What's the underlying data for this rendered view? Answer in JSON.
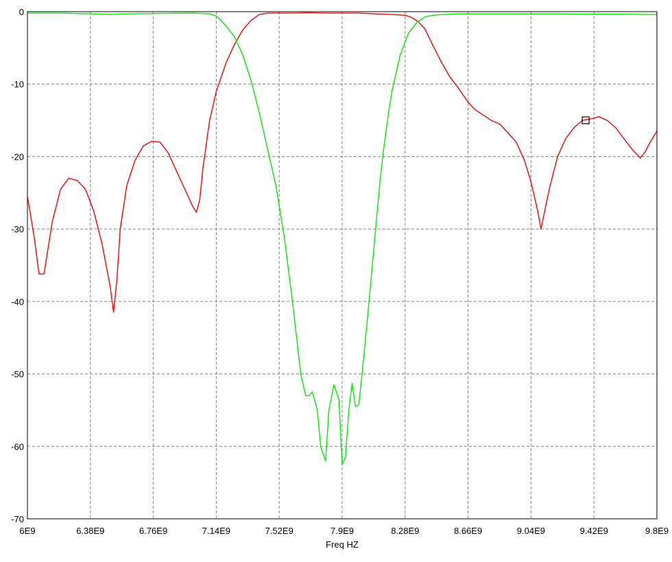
{
  "chart_data": {
    "type": "line",
    "title": "",
    "xlabel": "Freq HZ",
    "ylabel": "",
    "xlim": [
      6000000000,
      9800000000
    ],
    "ylim": [
      -70,
      0
    ],
    "grid": true,
    "x_tick_labels": [
      "6E9",
      "6.38E9",
      "6.76E9",
      "7.14E9",
      "7.52E9",
      "7.9E9",
      "8.28E9",
      "8.66E9",
      "9.04E9",
      "9.42E9",
      "9.8E9"
    ],
    "y_tick_labels": [
      "0",
      "-10",
      "-20",
      "-30",
      "-40",
      "-50",
      "-60",
      "-70"
    ],
    "colors": {
      "series_1": "#ff0000",
      "series_2": "#00ee00",
      "axes": "#000000",
      "grid": "#808080",
      "marker": "#000000"
    },
    "series": [
      {
        "x": [
          6000000000.0,
          6040000000.0,
          6070000000.0,
          6100000000.0,
          6150000000.0,
          6200000000.0,
          6250000000.0,
          6300000000.0,
          6350000000.0,
          6400000000.0,
          6450000000.0,
          6500000000.0,
          6520000000.0,
          6540000000.0,
          6560000000.0,
          6600000000.0,
          6650000000.0,
          6700000000.0,
          6750000000.0,
          6800000000.0,
          6850000000.0,
          6900000000.0,
          6950000000.0,
          7000000000.0,
          7020000000.0,
          7040000000.0,
          7060000000.0,
          7100000000.0,
          7140000000.0,
          7200000000.0,
          7250000000.0,
          7300000000.0,
          7350000000.0,
          7400000000.0,
          7450000000.0,
          7520000000.0,
          7600000000.0,
          7700000000.0,
          7800000000.0,
          7900000000.0,
          8000000000.0,
          8100000000.0,
          8200000000.0,
          8280000000.0,
          8320000000.0,
          8360000000.0,
          8400000000.0,
          8450000000.0,
          8500000000.0,
          8550000000.0,
          8600000000.0,
          8660000000.0,
          8700000000.0,
          8800000000.0,
          8850000000.0,
          8900000000.0,
          8950000000.0,
          9000000000.0,
          9040000000.0,
          9080000000.0,
          9100000000.0,
          9150000000.0,
          9200000000.0,
          9250000000.0,
          9300000000.0,
          9350000000.0,
          9400000000.0,
          9450000000.0,
          9500000000.0,
          9550000000.0,
          9600000000.0,
          9650000000.0,
          9700000000.0,
          9730000000.0,
          9760000000.0,
          9800000000.0
        ],
        "y": [
          -25.5,
          -31,
          -36.2,
          -36.2,
          -29,
          -24.5,
          -23,
          -23.3,
          -24.5,
          -27.5,
          -32,
          -38,
          -41.5,
          -37,
          -30,
          -24,
          -20.5,
          -18.5,
          -17.9,
          -18,
          -19.5,
          -22,
          -24.5,
          -27,
          -27.7,
          -26,
          -21.5,
          -15,
          -11,
          -7,
          -4.5,
          -2.5,
          -1.2,
          -0.4,
          -0.2,
          -0.2,
          -0.2,
          -0.15,
          -0.2,
          -0.2,
          -0.2,
          -0.3,
          -0.4,
          -0.5,
          -0.8,
          -1.4,
          -2.4,
          -4.8,
          -7,
          -9,
          -10.5,
          -12.5,
          -13.5,
          -15,
          -15.5,
          -16.7,
          -18,
          -20.5,
          -23.5,
          -27.5,
          -30,
          -24.5,
          -20,
          -17.5,
          -16,
          -15,
          -14.8,
          -14.5,
          -15,
          -16,
          -17.5,
          -19,
          -20.2,
          -19.3,
          -18,
          -16.5
        ]
      },
      {
        "x": [
          6000000000.0,
          6200000000.0,
          6400000000.0,
          6500000000.0,
          6600000000.0,
          6800000000.0,
          7000000000.0,
          7100000000.0,
          7140000000.0,
          7160000000.0,
          7200000000.0,
          7250000000.0,
          7300000000.0,
          7350000000.0,
          7400000000.0,
          7450000000.0,
          7500000000.0,
          7550000000.0,
          7600000000.0,
          7650000000.0,
          7680000000.0,
          7700000000.0,
          7720000000.0,
          7750000000.0,
          7770000000.0,
          7800000000.0,
          7820000000.0,
          7850000000.0,
          7880000000.0,
          7900000000.0,
          7920000000.0,
          7940000000.0,
          7960000000.0,
          7980000000.0,
          8000000000.0,
          8020000000.0,
          8050000000.0,
          8070000000.0,
          8090000000.0,
          8110000000.0,
          8130000000.0,
          8150000000.0,
          8180000000.0,
          8200000000.0,
          8250000000.0,
          8300000000.0,
          8350000000.0,
          8400000000.0,
          8450000000.0,
          8500000000.0,
          8550000000.0,
          8600000000.0,
          8660000000.0,
          8700000000.0,
          8800000000.0,
          9000000000.0,
          9200000000.0,
          9400000000.0,
          9600000000.0,
          9800000000.0
        ],
        "y": [
          -0.2,
          -0.2,
          -0.3,
          -0.4,
          -0.3,
          -0.25,
          -0.2,
          -0.3,
          -0.6,
          -1,
          -2,
          -3.5,
          -6,
          -9.5,
          -14,
          -19,
          -24,
          -31,
          -40,
          -50,
          -53,
          -53,
          -52.5,
          -55,
          -60,
          -62,
          -55,
          -51.5,
          -53.5,
          -62.5,
          -61.5,
          -55,
          -51.3,
          -54.5,
          -54.3,
          -50,
          -43,
          -38,
          -33,
          -28,
          -23,
          -19,
          -14,
          -11,
          -6,
          -3,
          -1.5,
          -0.7,
          -0.5,
          -0.4,
          -0.35,
          -0.3,
          -0.3,
          -0.3,
          -0.3,
          -0.3,
          -0.3,
          -0.35,
          -0.35,
          -0.4
        ]
      }
    ],
    "marker": {
      "x": 9370000000.0,
      "y": -15
    }
  }
}
